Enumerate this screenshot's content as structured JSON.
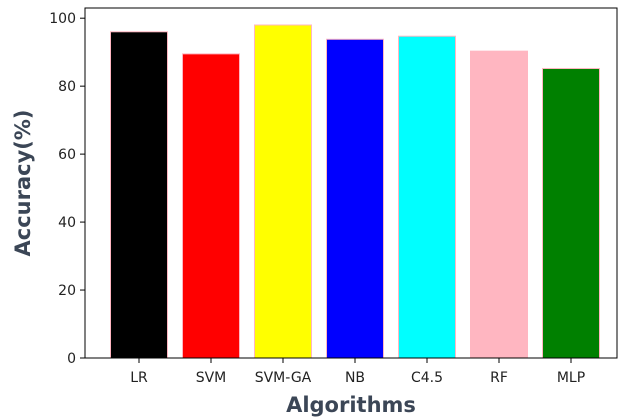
{
  "chart_data": {
    "type": "bar",
    "title": "",
    "xlabel": "Algorithms",
    "ylabel": "Accuracy(%)",
    "categories": [
      "LR",
      "SVM",
      "SVM-GA",
      "NB",
      "C4.5",
      "RF",
      "MLP"
    ],
    "values": [
      96.0,
      89.5,
      98.0,
      93.8,
      94.7,
      90.3,
      85.2
    ],
    "colors": [
      "#000000",
      "#ff0000",
      "#ffff00",
      "#0000ff",
      "#00ffff",
      "#ffb6c1",
      "#008000"
    ],
    "bar_edge_color": "#ffb6c1",
    "ylim": [
      0,
      103
    ],
    "yticks": [
      0,
      20,
      40,
      60,
      80,
      100
    ],
    "grid": false,
    "legend": "none"
  }
}
